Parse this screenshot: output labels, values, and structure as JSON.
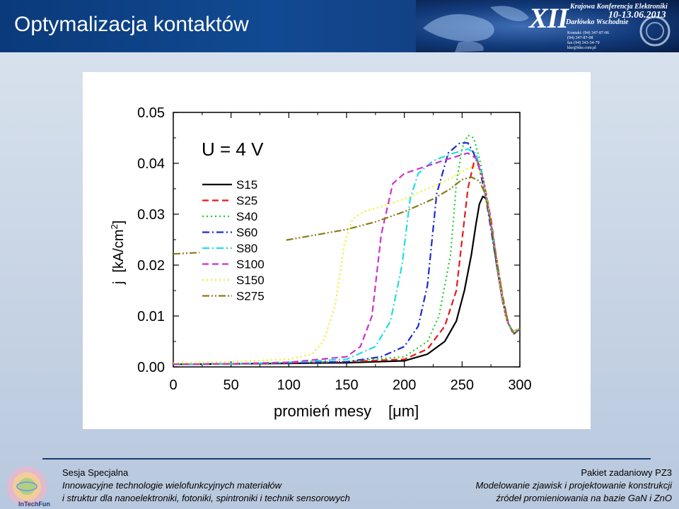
{
  "slide": {
    "title": "Optymalizacja kontaktów"
  },
  "logo": {
    "numeral": "XII",
    "line1": "Krajowa Konferencja Elektroniki",
    "dates": "10-13.06.2013",
    "place": "Darłówko Wschodnie",
    "contact": [
      "Kontakt: (94) 347-87-06",
      "(94) 347-87-08",
      "fax (94) 343-34-79",
      "kke@kke.com.pl"
    ]
  },
  "chart_data": {
    "type": "line",
    "annotation": "U = 4 V",
    "xlabel": "promień mesy",
    "xunit": "[μm]",
    "ylabel": "j",
    "yunit_prefix": "[kA/cm",
    "yunit_sup": "2",
    "yunit_suffix": "]",
    "xlim": [
      0,
      300
    ],
    "ylim": [
      0.0,
      0.05
    ],
    "xticks": [
      "0",
      "50",
      "100",
      "150",
      "200",
      "250",
      "300"
    ],
    "yticks": [
      "0.00",
      "0.01",
      "0.02",
      "0.03",
      "0.04",
      "0.05"
    ],
    "grid": false,
    "legend_position": "top-left",
    "series": [
      {
        "name": "S15",
        "color": "#000000",
        "dash": "solid",
        "x": [
          0,
          50,
          100,
          150,
          200,
          220,
          235,
          245,
          252,
          258,
          262,
          265,
          268,
          271,
          275,
          280,
          285,
          290,
          295,
          300
        ],
        "y": [
          0.0005,
          0.0006,
          0.0007,
          0.0008,
          0.0012,
          0.0025,
          0.005,
          0.009,
          0.015,
          0.022,
          0.028,
          0.032,
          0.0335,
          0.033,
          0.028,
          0.02,
          0.013,
          0.0085,
          0.0065,
          0.0075
        ]
      },
      {
        "name": "S25",
        "color": "#e41a1c",
        "dash": "dash",
        "x": [
          0,
          50,
          100,
          150,
          200,
          220,
          235,
          245,
          250,
          255,
          260,
          263,
          266,
          270,
          275,
          280,
          285,
          290,
          295,
          300
        ],
        "y": [
          0.0005,
          0.0006,
          0.0008,
          0.001,
          0.0015,
          0.0035,
          0.008,
          0.015,
          0.025,
          0.035,
          0.04,
          0.0405,
          0.039,
          0.035,
          0.029,
          0.021,
          0.014,
          0.0085,
          0.0065,
          0.0075
        ]
      },
      {
        "name": "S40",
        "color": "#22cc22",
        "dash": "dot",
        "x": [
          0,
          50,
          100,
          150,
          200,
          220,
          230,
          240,
          245,
          250,
          255,
          260,
          265,
          270,
          275,
          280,
          285,
          290,
          295,
          300
        ],
        "y": [
          0.0005,
          0.0006,
          0.0008,
          0.001,
          0.002,
          0.005,
          0.01,
          0.022,
          0.036,
          0.043,
          0.0455,
          0.045,
          0.041,
          0.035,
          0.028,
          0.02,
          0.013,
          0.0085,
          0.0065,
          0.0075
        ]
      },
      {
        "name": "S60",
        "color": "#1c2bcf",
        "dash": "dashdot",
        "x": [
          0,
          50,
          100,
          150,
          180,
          200,
          212,
          220,
          228,
          238,
          248,
          255,
          260,
          265,
          270,
          275,
          280,
          285,
          290,
          295,
          300
        ],
        "y": [
          0.0005,
          0.0006,
          0.0008,
          0.001,
          0.002,
          0.004,
          0.008,
          0.016,
          0.034,
          0.042,
          0.044,
          0.044,
          0.042,
          0.039,
          0.034,
          0.027,
          0.02,
          0.013,
          0.0085,
          0.0065,
          0.0075
        ]
      },
      {
        "name": "S80",
        "color": "#22dddd",
        "dash": "dashdot",
        "x": [
          0,
          50,
          100,
          150,
          175,
          188,
          198,
          205,
          212,
          225,
          240,
          255,
          262,
          268,
          273,
          278,
          283,
          288,
          293,
          300
        ],
        "y": [
          0.0005,
          0.0006,
          0.0009,
          0.0015,
          0.004,
          0.009,
          0.02,
          0.033,
          0.038,
          0.0405,
          0.0418,
          0.0428,
          0.042,
          0.037,
          0.031,
          0.024,
          0.016,
          0.0095,
          0.007,
          0.0075
        ]
      },
      {
        "name": "S100",
        "color": "#cc33cc",
        "dash": "dash",
        "x": [
          0,
          50,
          100,
          150,
          162,
          172,
          180,
          190,
          200,
          220,
          240,
          255,
          262,
          268,
          273,
          278,
          283,
          288,
          293,
          300
        ],
        "y": [
          0.0005,
          0.0006,
          0.0009,
          0.002,
          0.004,
          0.01,
          0.026,
          0.036,
          0.038,
          0.0395,
          0.041,
          0.042,
          0.041,
          0.037,
          0.031,
          0.024,
          0.016,
          0.0095,
          0.007,
          0.0075
        ]
      },
      {
        "name": "S150",
        "color": "#eeee22",
        "dash": "dot",
        "x": [
          0,
          50,
          100,
          120,
          130,
          140,
          148,
          155,
          165,
          180,
          200,
          220,
          240,
          255,
          262,
          268,
          273,
          278,
          283,
          288,
          293,
          300
        ],
        "y": [
          0.0008,
          0.001,
          0.0015,
          0.0025,
          0.005,
          0.012,
          0.024,
          0.029,
          0.0305,
          0.0315,
          0.033,
          0.035,
          0.037,
          0.039,
          0.0395,
          0.037,
          0.031,
          0.024,
          0.016,
          0.0095,
          0.007,
          0.0075
        ]
      },
      {
        "name": "S275",
        "color": "#8a7a1a",
        "dash": "dashdotdot",
        "x": [
          0,
          25,
          50,
          75,
          100,
          125,
          150,
          175,
          200,
          225,
          240,
          250,
          258,
          265,
          270,
          275,
          280,
          285,
          290,
          295,
          300
        ],
        "y": [
          0.0222,
          0.0225,
          0.0232,
          0.024,
          0.025,
          0.026,
          0.027,
          0.0285,
          0.0305,
          0.033,
          0.035,
          0.0368,
          0.0373,
          0.0365,
          0.034,
          0.028,
          0.021,
          0.014,
          0.0085,
          0.0065,
          0.0075
        ]
      }
    ]
  },
  "footer": {
    "left_title": "Sesja Specjalna",
    "left_line1": "Innowacyjne technologie wielofunkcyjnych materiałów",
    "left_line2": "i struktur dla nanoelektroniki, fotoniki, spintroniki i technik sensorowych",
    "right_title": "Pakiet zadaniowy  PZ3",
    "right_line1": "Modelowanie zjawisk i projektowanie konstrukcji",
    "right_line2": "źródeł promieniowania na bazie GaN i ZnO",
    "badge": "InTechFun"
  }
}
